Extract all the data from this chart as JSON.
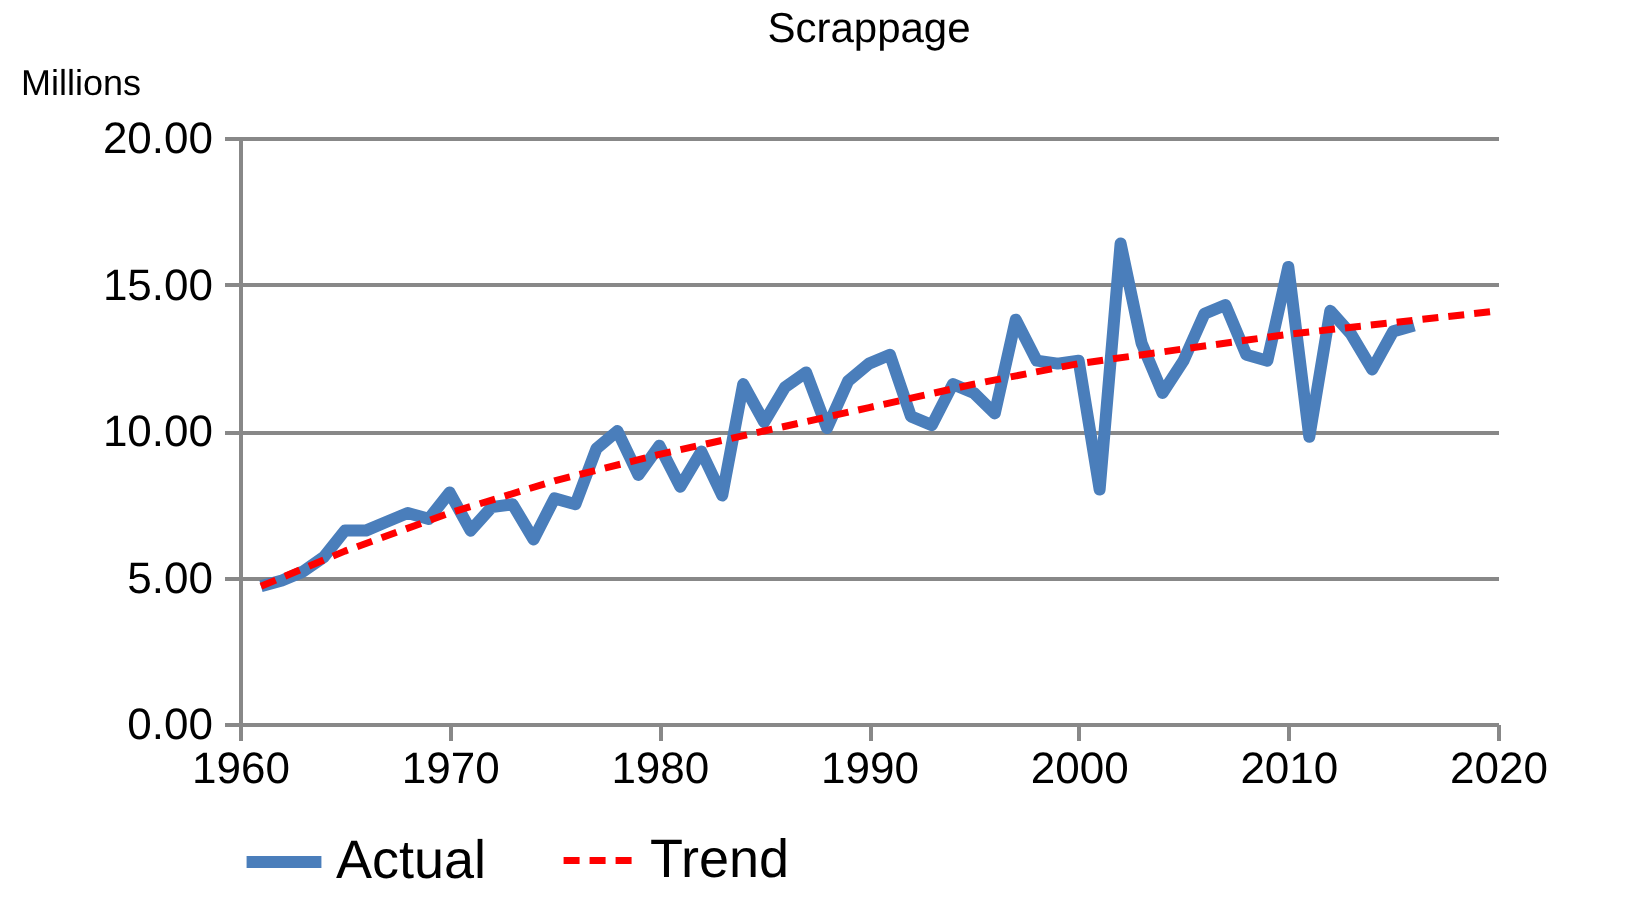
{
  "chart_data": {
    "type": "line",
    "title": "Scrappage",
    "ylabel": "Millions",
    "xlim": [
      1960,
      2020
    ],
    "xticks": [
      1960,
      1970,
      1980,
      1990,
      2000,
      2010,
      2020
    ],
    "ylim": [
      0,
      20
    ],
    "yticks": [
      {
        "value": 0,
        "label": "0.00"
      },
      {
        "value": 5,
        "label": "5.00"
      },
      {
        "value": 10,
        "label": "10.00"
      },
      {
        "value": 15,
        "label": "15.00"
      },
      {
        "value": 20,
        "label": "20.00"
      }
    ],
    "grid": "y",
    "legend": "bottom",
    "marker": "none",
    "series": [
      {
        "name": "Actual",
        "color": "#4a7ebb",
        "line_style": "solid",
        "x": [
          1961,
          1962,
          1963,
          1964,
          1965,
          1966,
          1967,
          1968,
          1969,
          1970,
          1971,
          1972,
          1973,
          1974,
          1975,
          1976,
          1977,
          1978,
          1979,
          1980,
          1981,
          1982,
          1983,
          1984,
          1985,
          1986,
          1987,
          1988,
          1989,
          1990,
          1991,
          1992,
          1993,
          1994,
          1995,
          1996,
          1997,
          1998,
          1999,
          2000,
          2001,
          2002,
          2003,
          2004,
          2005,
          2006,
          2007,
          2008,
          2009,
          2010,
          2011,
          2012,
          2013,
          2014,
          2015,
          2016
        ],
        "values": [
          4.7,
          4.9,
          5.2,
          5.7,
          6.6,
          6.6,
          6.9,
          7.2,
          7.0,
          7.9,
          6.6,
          7.4,
          7.5,
          6.3,
          7.7,
          7.5,
          9.4,
          10.0,
          8.5,
          9.5,
          8.1,
          9.3,
          7.8,
          11.6,
          10.3,
          11.5,
          12.0,
          10.1,
          11.7,
          12.3,
          12.6,
          10.5,
          10.2,
          11.6,
          11.3,
          10.6,
          13.8,
          12.4,
          12.3,
          12.4,
          8.0,
          16.4,
          13.0,
          11.3,
          12.4,
          14.0,
          14.3,
          12.6,
          12.4,
          15.6,
          9.8,
          14.1,
          13.3,
          12.1,
          13.4,
          13.6
        ]
      },
      {
        "name": "Trend",
        "color": "#ff0000",
        "line_style": "dashed",
        "x": [
          1961,
          1965,
          1970,
          1975,
          1980,
          1985,
          1990,
          1995,
          2000,
          2005,
          2010,
          2015,
          2020
        ],
        "values": [
          4.7,
          5.9,
          7.2,
          8.3,
          9.2,
          10.0,
          10.8,
          11.6,
          12.3,
          12.8,
          13.3,
          13.7,
          14.1
        ]
      }
    ]
  }
}
